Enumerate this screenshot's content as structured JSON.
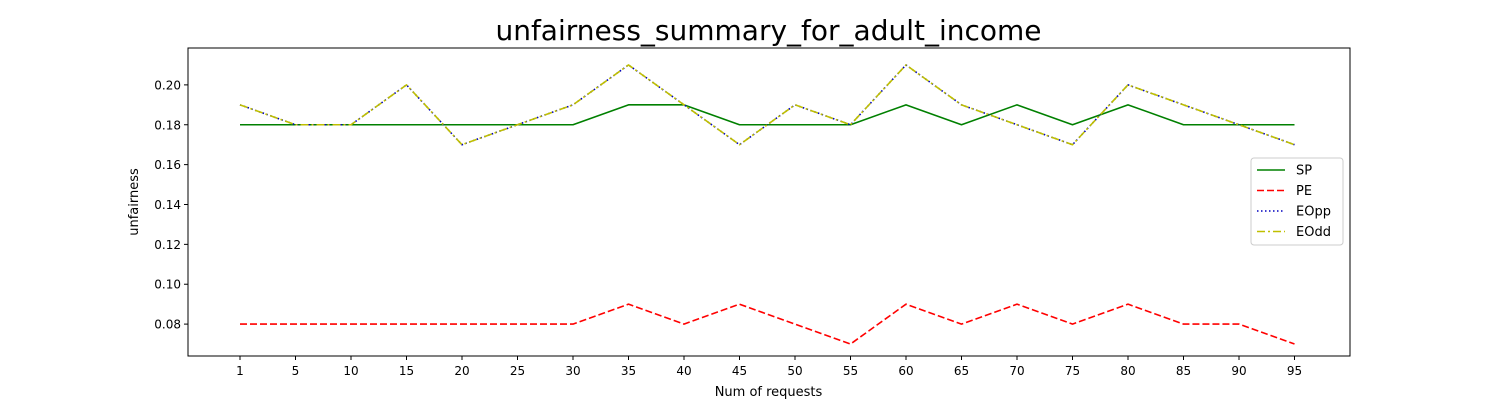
{
  "chart_data": {
    "type": "line",
    "title": "unfairness_summary_for_adult_income",
    "xlabel": "Num of requests",
    "ylabel": "unfairness",
    "categories": [
      "1",
      "5",
      "10",
      "15",
      "20",
      "25",
      "30",
      "35",
      "40",
      "45",
      "50",
      "55",
      "60",
      "65",
      "70",
      "75",
      "80",
      "85",
      "90",
      "95"
    ],
    "ylim": [
      0.064,
      0.2185
    ],
    "yticks": [
      0.08,
      0.1,
      0.12,
      0.14,
      0.16,
      0.18,
      0.2
    ],
    "ytick_labels": [
      "0.08",
      "0.10",
      "0.12",
      "0.14",
      "0.16",
      "0.18",
      "0.20"
    ],
    "grid": false,
    "legend_position": "center-right",
    "series": [
      {
        "name": "SP",
        "color": "#008000",
        "style": "solid",
        "values": [
          0.18,
          0.18,
          0.18,
          0.18,
          0.18,
          0.18,
          0.18,
          0.19,
          0.19,
          0.18,
          0.18,
          0.18,
          0.19,
          0.18,
          0.19,
          0.18,
          0.19,
          0.18,
          0.18,
          0.18
        ]
      },
      {
        "name": "PE",
        "color": "#ff0000",
        "style": "dashed",
        "values": [
          0.08,
          0.08,
          0.08,
          0.08,
          0.08,
          0.08,
          0.08,
          0.09,
          0.08,
          0.09,
          0.08,
          0.07,
          0.09,
          0.08,
          0.09,
          0.08,
          0.09,
          0.08,
          0.08,
          0.07
        ]
      },
      {
        "name": "EOpp",
        "color": "#0000bf",
        "style": "dotted",
        "values": [
          0.19,
          0.18,
          0.18,
          0.2,
          0.17,
          0.18,
          0.19,
          0.21,
          0.19,
          0.17,
          0.19,
          0.18,
          0.21,
          0.19,
          0.18,
          0.17,
          0.2,
          0.19,
          0.18,
          0.17
        ]
      },
      {
        "name": " EOdd",
        "color": "#bfbf00",
        "style": "dashdot",
        "values": [
          0.19,
          0.18,
          0.18,
          0.2,
          0.17,
          0.18,
          0.19,
          0.21,
          0.19,
          0.17,
          0.19,
          0.18,
          0.21,
          0.19,
          0.18,
          0.17,
          0.2,
          0.19,
          0.18,
          0.17
        ]
      }
    ]
  }
}
